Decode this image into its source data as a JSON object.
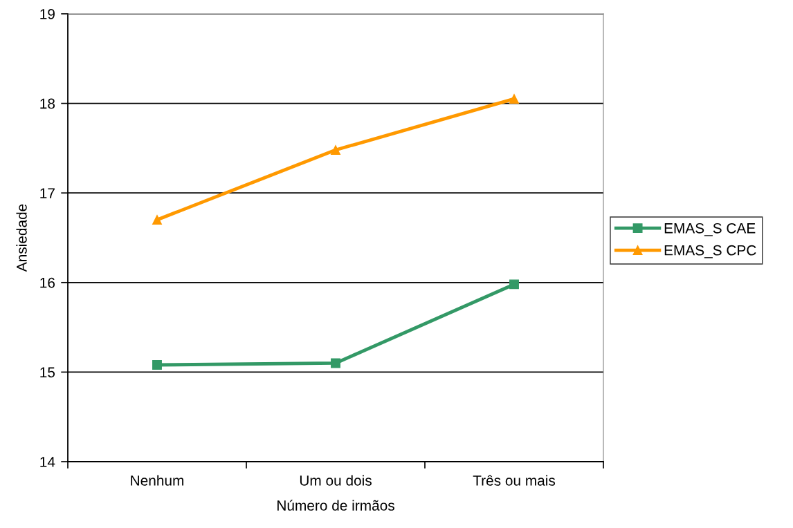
{
  "chart_data": {
    "type": "line",
    "xlabel": "Número de irmãos",
    "ylabel": "Ansiedade",
    "categories": [
      "Nenhum",
      "Um ou dois",
      "Três ou mais"
    ],
    "series": [
      {
        "name": "EMAS_S CAE",
        "color": "#339966",
        "marker": "square",
        "values": [
          15.08,
          15.1,
          15.98
        ]
      },
      {
        "name": "EMAS_S CPC",
        "color": "#ff9900",
        "marker": "triangle",
        "values": [
          16.7,
          17.48,
          18.05
        ]
      }
    ],
    "ylim": [
      14,
      19
    ],
    "yticks": [
      14,
      15,
      16,
      17,
      18,
      19
    ],
    "grid": "y",
    "legend": "right",
    "line_style": "solid"
  }
}
